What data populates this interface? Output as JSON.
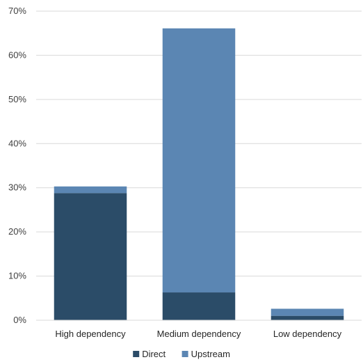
{
  "chart_data": {
    "type": "bar",
    "stacked": true,
    "categories": [
      "High dependency",
      "Medium dependency",
      "Low dependency"
    ],
    "series": [
      {
        "name": "Direct",
        "color": "#2b4c68",
        "values": [
          28.8,
          6.3,
          1.0
        ]
      },
      {
        "name": "Upstream",
        "color": "#5b86b3",
        "values": [
          1.5,
          59.8,
          1.6
        ]
      }
    ],
    "y_ticks": [
      "0%",
      "10%",
      "20%",
      "30%",
      "40%",
      "50%",
      "60%",
      "70%"
    ],
    "ylim": [
      0,
      70
    ],
    "y_unit": "percent",
    "grid": true,
    "legend_position": "bottom"
  }
}
